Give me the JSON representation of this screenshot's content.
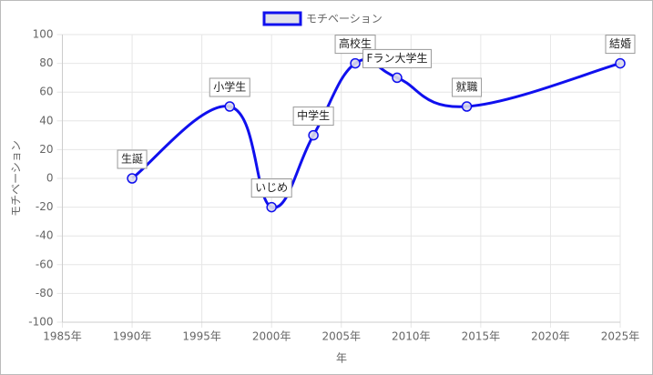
{
  "chart_data": {
    "type": "line",
    "legend": "top",
    "x_label": "年",
    "y_label": "モチベーション",
    "x": [
      1990,
      1997,
      2000,
      2003,
      2006,
      2009,
      2014,
      2025
    ],
    "series": [
      {
        "name": "モチベーション",
        "color": "#1010ee",
        "values": [
          0,
          50,
          -20,
          30,
          80,
          70,
          50,
          80
        ],
        "point_labels": [
          "生誕",
          "小学生",
          "いじめ",
          "中学生",
          "高校生",
          "Fラン大学生",
          "就職",
          "結婚"
        ]
      }
    ],
    "xlim": [
      1985,
      2025
    ],
    "xticks": [
      {
        "value": 1985,
        "label": "1985年"
      },
      {
        "value": 1990,
        "label": "1990年"
      },
      {
        "value": 1995,
        "label": "1995年"
      },
      {
        "value": 2000,
        "label": "2000年"
      },
      {
        "value": 2005,
        "label": "2005年"
      },
      {
        "value": 2010,
        "label": "2010年"
      },
      {
        "value": 2015,
        "label": "2015年"
      },
      {
        "value": 2020,
        "label": "2020年"
      },
      {
        "value": 2025,
        "label": "2025年"
      }
    ],
    "ylim": [
      -100,
      100
    ],
    "yticks": [
      -100,
      -80,
      -60,
      -40,
      -20,
      0,
      20,
      40,
      60,
      80,
      100
    ],
    "grid": true
  }
}
